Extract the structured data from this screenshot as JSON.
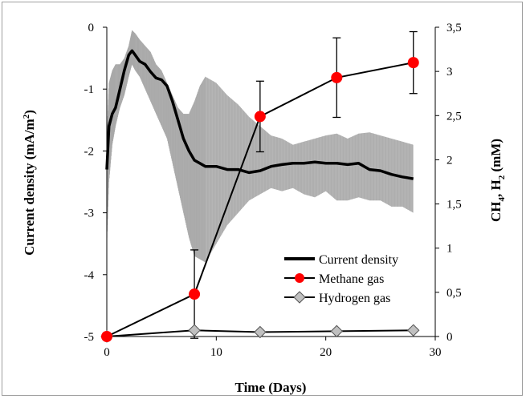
{
  "chart_data": {
    "type": "line",
    "xlabel": "Time (Days)",
    "ylabel_left": "Current density (mA/m²)",
    "ylabel_left_parts": [
      "Current density (mA/m",
      "2",
      ")"
    ],
    "ylabel_right": "CH₄, H₂ (mM)",
    "ylabel_right_parts": [
      "CH",
      "4",
      ", H",
      "2",
      " (mM)"
    ],
    "xlim": [
      0,
      30
    ],
    "ylim_left": [
      -5,
      0
    ],
    "ylim_right": [
      0,
      3.5
    ],
    "x_ticks": [
      0,
      10,
      20,
      30
    ],
    "x_tick_labels": [
      "0",
      "10",
      "20",
      "30"
    ],
    "y_left_ticks": [
      0,
      -1,
      -2,
      -3,
      -4,
      -5
    ],
    "y_left_tick_labels": [
      "0",
      "-1",
      "-2",
      "-3",
      "-4",
      "-5"
    ],
    "y_right_ticks": [
      3.5,
      3,
      2.5,
      2,
      1.5,
      1,
      0.5,
      0
    ],
    "y_right_tick_labels": [
      "3,5",
      "3",
      "2,5",
      "2",
      "1,5",
      "1",
      "0,5",
      "0"
    ],
    "legend_position": "lower-right",
    "grid": false,
    "colors": {
      "current_density": "#000000",
      "current_density_band": "#b9b9b9",
      "methane": "#ff0000",
      "hydrogen": "#c0c0c0"
    },
    "series": [
      {
        "name": "Current density",
        "axis": "left",
        "marker": "none",
        "x": [
          0,
          0.2,
          0.5,
          0.8,
          1.2,
          1.6,
          2.0,
          2.3,
          2.6,
          3.0,
          3.5,
          4.0,
          4.5,
          5.0,
          5.5,
          6.0,
          6.5,
          7.0,
          7.5,
          8.0,
          8.5,
          9.0,
          10.0,
          11.0,
          12.0,
          13.0,
          14.0,
          15.0,
          16.0,
          17.0,
          18.0,
          19.0,
          20.0,
          21.0,
          22.0,
          23.0,
          24.0,
          25.0,
          26.0,
          27.0,
          28.0
        ],
        "values": [
          -2.3,
          -1.6,
          -1.4,
          -1.3,
          -1.0,
          -0.7,
          -0.45,
          -0.38,
          -0.45,
          -0.55,
          -0.6,
          -0.72,
          -0.82,
          -0.85,
          -0.95,
          -1.2,
          -1.5,
          -1.8,
          -2.0,
          -2.15,
          -2.2,
          -2.25,
          -2.25,
          -2.3,
          -2.3,
          -2.35,
          -2.32,
          -2.25,
          -2.22,
          -2.2,
          -2.2,
          -2.18,
          -2.2,
          -2.2,
          -2.22,
          -2.2,
          -2.3,
          -2.32,
          -2.38,
          -2.42,
          -2.45
        ],
        "band_upper": [
          -1.8,
          -0.9,
          -0.7,
          -0.6,
          -0.6,
          -0.5,
          -0.3,
          -0.05,
          -0.1,
          -0.2,
          -0.3,
          -0.4,
          -0.6,
          -0.7,
          -0.9,
          -1.1,
          -1.3,
          -1.4,
          -1.4,
          -1.2,
          -0.95,
          -0.8,
          -0.9,
          -1.1,
          -1.25,
          -1.45,
          -1.6,
          -1.75,
          -1.8,
          -1.9,
          -1.85,
          -1.8,
          -1.75,
          -1.72,
          -1.8,
          -1.72,
          -1.7,
          -1.75,
          -1.8,
          -1.85,
          -1.9
        ],
        "band_lower": [
          -3.5,
          -2.5,
          -1.9,
          -1.6,
          -1.3,
          -1.1,
          -0.8,
          -0.6,
          -0.7,
          -0.8,
          -1.0,
          -1.2,
          -1.4,
          -1.6,
          -1.8,
          -2.2,
          -2.6,
          -3.0,
          -3.4,
          -3.7,
          -3.75,
          -3.8,
          -3.5,
          -3.2,
          -3.0,
          -2.8,
          -2.7,
          -2.6,
          -2.65,
          -2.6,
          -2.7,
          -2.75,
          -2.65,
          -2.8,
          -2.8,
          -2.75,
          -2.8,
          -2.8,
          -2.9,
          -2.9,
          -3.0
        ]
      },
      {
        "name": "Methane gas",
        "axis": "right",
        "marker": "circle",
        "x": [
          0,
          8,
          14,
          21,
          28
        ],
        "values": [
          0,
          0.48,
          2.49,
          2.93,
          3.1
        ],
        "error": [
          0,
          0.5,
          0.4,
          0.45,
          0.35
        ]
      },
      {
        "name": "Hydrogen gas",
        "axis": "right",
        "marker": "diamond",
        "x": [
          0,
          8,
          14,
          21,
          28
        ],
        "values": [
          0,
          0.07,
          0.05,
          0.06,
          0.07
        ],
        "error": [
          0,
          0,
          0,
          0,
          0.02
        ]
      }
    ]
  }
}
